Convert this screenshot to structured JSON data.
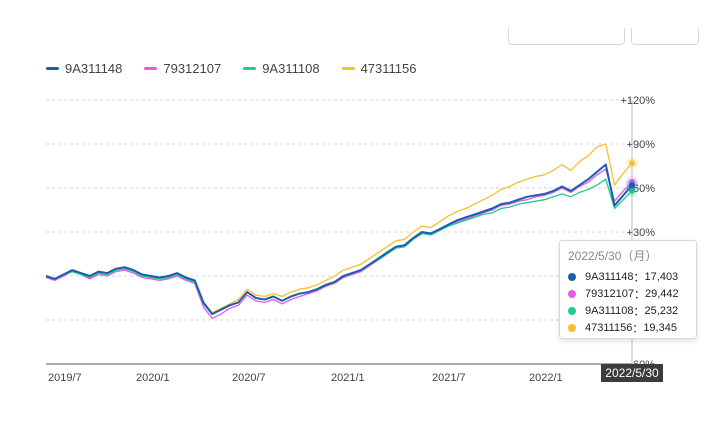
{
  "chart_data": {
    "type": "line",
    "x_ticks": [
      "2019/7",
      "2020/1",
      "2020/7",
      "2021/1",
      "2021/7",
      "2022/1"
    ],
    "y_ticks": [
      "+120%",
      "+90%",
      "+60%",
      "+30%",
      "-60%"
    ],
    "ylim": [
      -60,
      120
    ],
    "grid": true,
    "legend": "top-left",
    "series": [
      {
        "name": "9A311148",
        "color": "#1a5fad",
        "values": [
          0,
          -2,
          1,
          4,
          2,
          0,
          3,
          2,
          5,
          6,
          4,
          1,
          0,
          -1,
          0,
          2,
          -1,
          -3,
          -18,
          -26,
          -23,
          -20,
          -18,
          -11,
          -15,
          -16,
          -14,
          -17,
          -14,
          -12,
          -11,
          -9,
          -6,
          -4,
          0,
          2,
          4,
          8,
          12,
          16,
          20,
          21,
          26,
          30,
          29,
          32,
          35,
          38,
          40,
          42,
          44,
          46,
          49,
          50,
          52,
          54,
          55,
          56,
          58,
          61,
          58,
          62,
          66,
          71,
          76,
          48,
          55,
          62
        ]
      },
      {
        "name": "79312107",
        "color": "#e45be8",
        "values": [
          -1,
          -3,
          0,
          3,
          1,
          -2,
          1,
          0,
          3,
          4,
          2,
          -1,
          -2,
          -3,
          -2,
          0,
          -3,
          -5,
          -21,
          -29,
          -26,
          -22,
          -20,
          -13,
          -17,
          -18,
          -16,
          -19,
          -16,
          -14,
          -12,
          -10,
          -7,
          -5,
          -1,
          1,
          3,
          7,
          11,
          15,
          19,
          20,
          25,
          29,
          28,
          31,
          34,
          37,
          39,
          41,
          43,
          45,
          48,
          49,
          51,
          52,
          54,
          55,
          57,
          60,
          57,
          61,
          64,
          69,
          73,
          51,
          58,
          64
        ]
      },
      {
        "name": "9A311108",
        "color": "#1fcc8b",
        "values": [
          0,
          -2,
          1,
          3,
          1,
          -1,
          2,
          1,
          4,
          5,
          3,
          0,
          -1,
          -2,
          -1,
          1,
          -2,
          -4,
          -19,
          -26,
          -23,
          -20,
          -18,
          -11,
          -15,
          -16,
          -14,
          -17,
          -14,
          -12,
          -11,
          -9,
          -6,
          -4,
          0,
          2,
          4,
          8,
          11,
          15,
          19,
          20,
          25,
          29,
          28,
          31,
          34,
          36,
          38,
          40,
          42,
          43,
          46,
          47,
          49,
          50,
          51,
          52,
          54,
          56,
          54,
          57,
          59,
          62,
          66,
          46,
          52,
          58
        ]
      },
      {
        "name": "47311156",
        "color": "#f5c12e",
        "values": [
          0,
          -2,
          1,
          4,
          2,
          0,
          2,
          1,
          4,
          5,
          4,
          0,
          -1,
          -2,
          -1,
          1,
          -2,
          -4,
          -18,
          -25,
          -22,
          -19,
          -16,
          -9,
          -13,
          -14,
          -12,
          -14,
          -11,
          -9,
          -8,
          -6,
          -3,
          0,
          4,
          6,
          8,
          12,
          16,
          20,
          24,
          25,
          30,
          34,
          33,
          37,
          41,
          44,
          46,
          49,
          52,
          55,
          59,
          61,
          64,
          66,
          68,
          69,
          72,
          76,
          72,
          78,
          82,
          88,
          90,
          62,
          70,
          77
        ]
      }
    ],
    "tooltip": {
      "date": "2022/5/30（月）",
      "rows": [
        {
          "name": "9A311148",
          "value": "17,403",
          "color": "#1a5fad"
        },
        {
          "name": "79312107",
          "value": "29,442",
          "color": "#e45be8"
        },
        {
          "name": "9A311108",
          "value": "25,232",
          "color": "#1fcc8b"
        },
        {
          "name": "47311156",
          "value": "19,345",
          "color": "#f5c12e"
        }
      ]
    },
    "cursor_date": "2022/5/30"
  }
}
